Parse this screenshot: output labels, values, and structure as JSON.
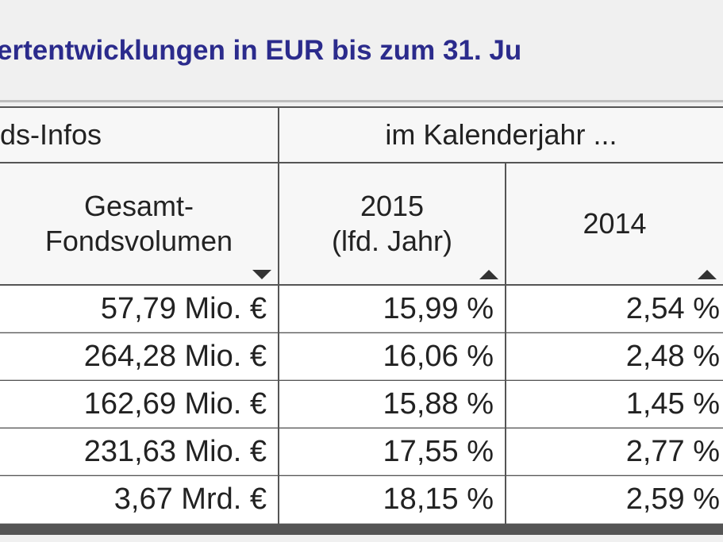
{
  "title": "ertentwicklungen in EUR bis zum 31. Ju",
  "table": {
    "group_headers": [
      "ds-Infos",
      "im Kalenderjahr ..."
    ],
    "columns": [
      [
        "Gesamt-",
        "Fondsvolumen"
      ],
      [
        "2015",
        "(lfd. Jahr)"
      ],
      [
        "2014"
      ]
    ],
    "rows": [
      [
        "57,79 Mio. €",
        "15,99 %",
        "2,54 %"
      ],
      [
        "264,28 Mio. €",
        "16,06 %",
        "2,48 %"
      ],
      [
        "162,69 Mio. €",
        "15,88 %",
        "1,45 %"
      ],
      [
        "231,63 Mio. €",
        "17,55 %",
        "2,77 %"
      ],
      [
        "3,67 Mrd. €",
        "18,15 %",
        "2,59 %"
      ]
    ]
  }
}
